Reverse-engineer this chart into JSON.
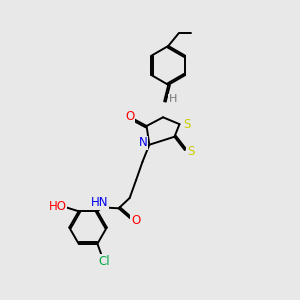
{
  "background_color": "#e8e8e8",
  "bond_color": "#000000",
  "atom_colors": {
    "N": "#0000ee",
    "O": "#ff0000",
    "S": "#cccc00",
    "Cl": "#00aa44",
    "H": "#777777",
    "C": "#000000"
  },
  "font_size": 8.5,
  "line_width": 1.4,
  "xlim": [
    0,
    10
  ],
  "ylim": [
    0,
    13
  ]
}
